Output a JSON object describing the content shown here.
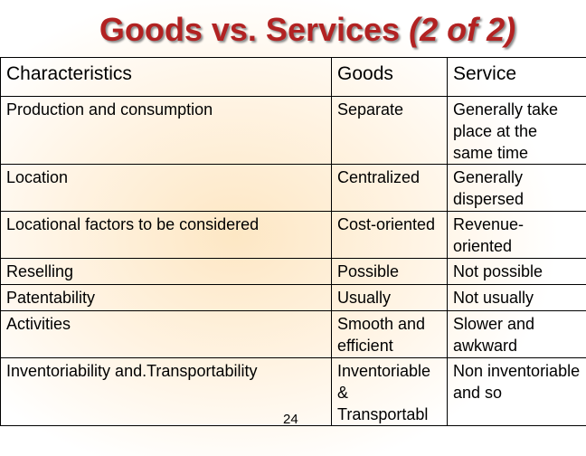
{
  "slide": {
    "title_main": "Goods vs. Services ",
    "title_suffix": "(2 of 2)",
    "page_number": "24"
  },
  "table": {
    "headers": [
      "Characteristics",
      "Goods",
      "Service"
    ],
    "rows": [
      [
        "Production and consumption",
        "Separate",
        "Generally take place at the same time"
      ],
      [
        "Location",
        "Centralized",
        "Generally dispersed"
      ],
      [
        "Locational factors to be considered",
        "Cost-oriented",
        "Revenue-oriented"
      ],
      [
        "Reselling",
        "Possible",
        "Not possible"
      ],
      [
        "Patentability",
        "Usually",
        "Not usually"
      ],
      [
        "Activities",
        "Smooth and efficient",
        "Slower and awkward"
      ],
      [
        "Inventoriability and.Transportability",
        "Inventoriable & Transportabl",
        "Non inventoriable and so"
      ]
    ]
  }
}
